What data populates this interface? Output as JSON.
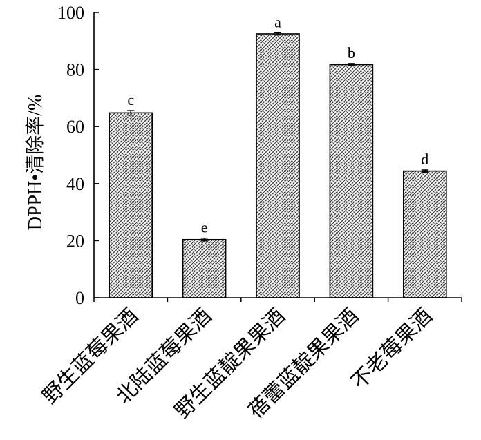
{
  "chart_data": {
    "type": "bar",
    "title": "",
    "xlabel": "",
    "ylabel": "DPPH•清除率/%",
    "ylim": [
      0,
      100
    ],
    "yticks": [
      0,
      20,
      40,
      60,
      80,
      100
    ],
    "grid": false,
    "legend": "none",
    "bar_fill": "crosshatch",
    "categories": [
      "野生蓝莓果酒",
      "北陆蓝莓果酒",
      "野生蓝靛果果酒",
      "蓓蕾蓝靛果果酒",
      "不老莓果酒"
    ],
    "values": [
      64.8,
      20.4,
      92.5,
      81.7,
      44.4
    ],
    "errors": [
      0.8,
      0.5,
      0.4,
      0.4,
      0.4
    ],
    "significance": [
      "c",
      "e",
      "a",
      "b",
      "d"
    ]
  }
}
